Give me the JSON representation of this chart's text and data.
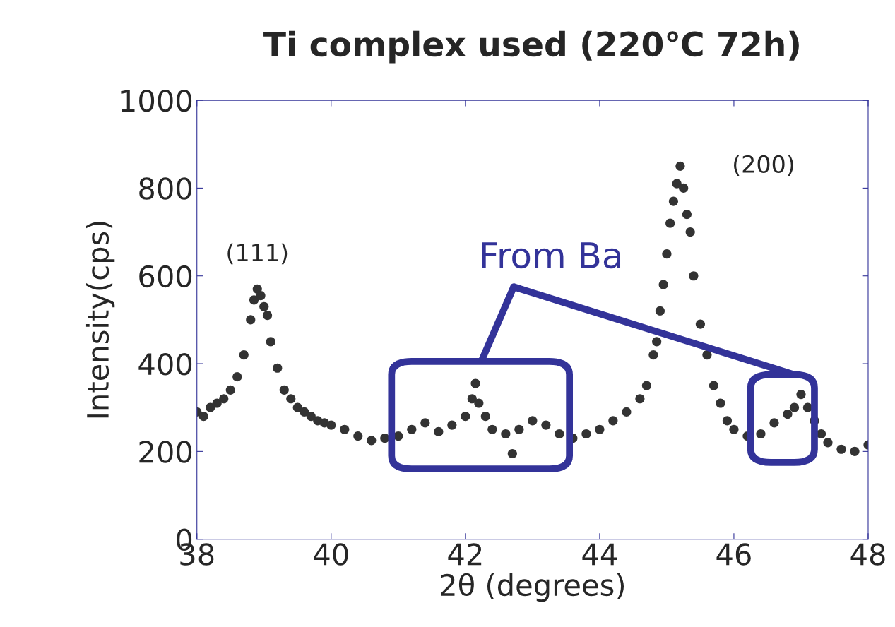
{
  "chart_data": {
    "type": "scatter",
    "title": "Ti complex used (220℃ 72h)",
    "xlabel": "2θ (degrees)",
    "ylabel": "Intensity(cps)",
    "x": [
      38.0,
      38.1,
      38.2,
      38.3,
      38.4,
      38.5,
      38.6,
      38.7,
      38.8,
      38.85,
      38.9,
      38.95,
      39.0,
      39.05,
      39.1,
      39.2,
      39.3,
      39.4,
      39.5,
      39.6,
      39.7,
      39.8,
      39.9,
      40.0,
      40.2,
      40.4,
      40.6,
      40.8,
      41.0,
      41.2,
      41.4,
      41.6,
      41.8,
      42.0,
      42.1,
      42.15,
      42.2,
      42.3,
      42.4,
      42.6,
      42.7,
      42.8,
      43.0,
      43.2,
      43.4,
      43.6,
      43.8,
      44.0,
      44.2,
      44.4,
      44.6,
      44.7,
      44.8,
      44.85,
      44.9,
      44.95,
      45.0,
      45.05,
      45.1,
      45.15,
      45.2,
      45.25,
      45.3,
      45.35,
      45.4,
      45.5,
      45.6,
      45.7,
      45.8,
      45.9,
      46.0,
      46.2,
      46.4,
      46.6,
      46.8,
      46.9,
      47.0,
      47.1,
      47.2,
      47.3,
      47.4,
      47.6,
      47.8,
      48.0
    ],
    "series": [
      {
        "color": "#333333",
        "values": [
          290,
          280,
          300,
          310,
          320,
          340,
          370,
          420,
          500,
          545,
          570,
          555,
          530,
          510,
          450,
          390,
          340,
          320,
          300,
          290,
          280,
          270,
          265,
          260,
          250,
          235,
          225,
          230,
          235,
          250,
          265,
          245,
          260,
          280,
          320,
          355,
          310,
          280,
          250,
          240,
          195,
          250,
          270,
          260,
          240,
          230,
          240,
          250,
          270,
          290,
          320,
          350,
          420,
          450,
          520,
          580,
          650,
          720,
          770,
          810,
          850,
          800,
          740,
          700,
          600,
          490,
          420,
          350,
          310,
          270,
          250,
          235,
          240,
          265,
          285,
          300,
          330,
          300,
          270,
          240,
          220,
          205,
          200,
          215
        ]
      }
    ],
    "marker": "circle",
    "xlim": [
      38,
      48
    ],
    "ylim": [
      0,
      1000
    ],
    "xticks": [
      38,
      40,
      42,
      44,
      46,
      48
    ],
    "yticks": [
      0,
      200,
      400,
      600,
      800,
      1000
    ],
    "grid": false,
    "annotations": [
      {
        "text": "(111)",
        "x": 38.9,
        "y": 570
      },
      {
        "text": "(200)",
        "x": 45.2,
        "y": 850
      },
      "From Ba"
    ]
  }
}
